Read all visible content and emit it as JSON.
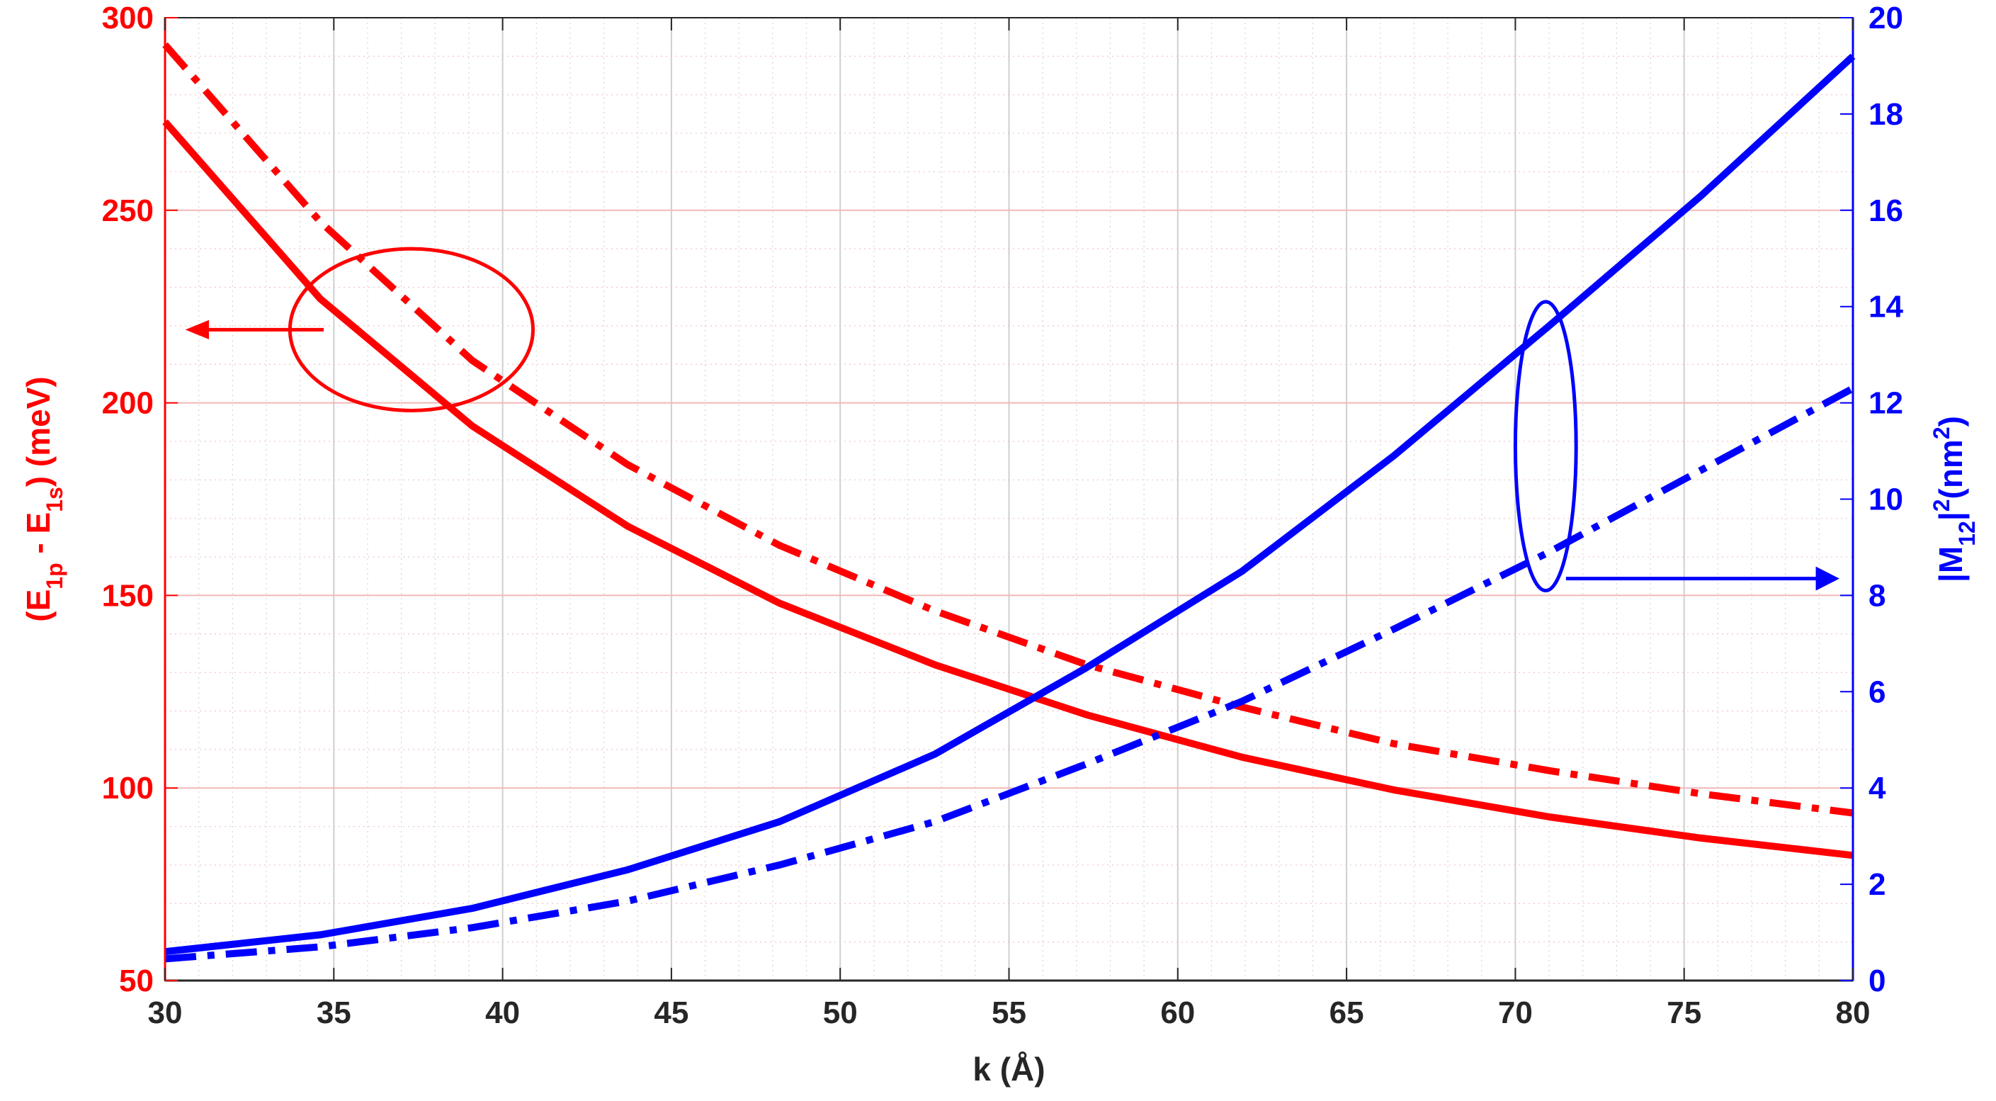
{
  "chart_data": {
    "type": "line",
    "xlabel": "k (Å)",
    "xlim": [
      30,
      80
    ],
    "x_ticks": [
      30,
      35,
      40,
      45,
      50,
      55,
      60,
      65,
      70,
      75,
      80
    ],
    "left_axis": {
      "label_parts": [
        "(E",
        "1p",
        " - E",
        "1s",
        ") (meV)"
      ],
      "ylim": [
        50,
        300
      ],
      "ticks": [
        50,
        100,
        150,
        200,
        250,
        300
      ],
      "color": "#ff0000"
    },
    "right_axis": {
      "label_parts": [
        "|M",
        "12",
        "|",
        "2",
        "(nm",
        "2",
        ")"
      ],
      "ylim": [
        0,
        20
      ],
      "ticks": [
        0,
        2,
        4,
        6,
        8,
        10,
        12,
        14,
        16,
        18,
        20
      ],
      "color": "#0000ff"
    },
    "x": [
      30,
      34.6,
      39.1,
      43.7,
      48.2,
      52.8,
      57.3,
      61.9,
      66.4,
      71.0,
      75.5,
      80
    ],
    "series": [
      {
        "axis": "left",
        "style": "solid",
        "color": "#ff0000",
        "values": [
          273,
          227,
          194,
          168,
          148,
          132,
          119,
          108,
          99.5,
          92.5,
          87,
          82.5
        ]
      },
      {
        "axis": "left",
        "style": "dashdot",
        "color": "#ff0000",
        "values": [
          293,
          247,
          211,
          184,
          163,
          146,
          132,
          121,
          111.5,
          104.5,
          98.5,
          93.5
        ]
      },
      {
        "axis": "right",
        "style": "solid",
        "color": "#0000ff",
        "values": [
          0.6,
          0.95,
          1.5,
          2.3,
          3.3,
          4.7,
          6.5,
          8.5,
          10.9,
          13.6,
          16.3,
          19.2
        ]
      },
      {
        "axis": "right",
        "style": "dashdot",
        "color": "#0000ff",
        "values": [
          0.45,
          0.7,
          1.1,
          1.65,
          2.4,
          3.3,
          4.5,
          5.8,
          7.3,
          8.9,
          10.6,
          12.3
        ]
      }
    ],
    "annotations": {
      "left_group_arrow": {
        "points_to": "left axis",
        "color": "#ff0000"
      },
      "right_group_arrow": {
        "points_to": "right axis",
        "color": "#0000ff"
      }
    },
    "grid": true,
    "minor_grid": true
  }
}
